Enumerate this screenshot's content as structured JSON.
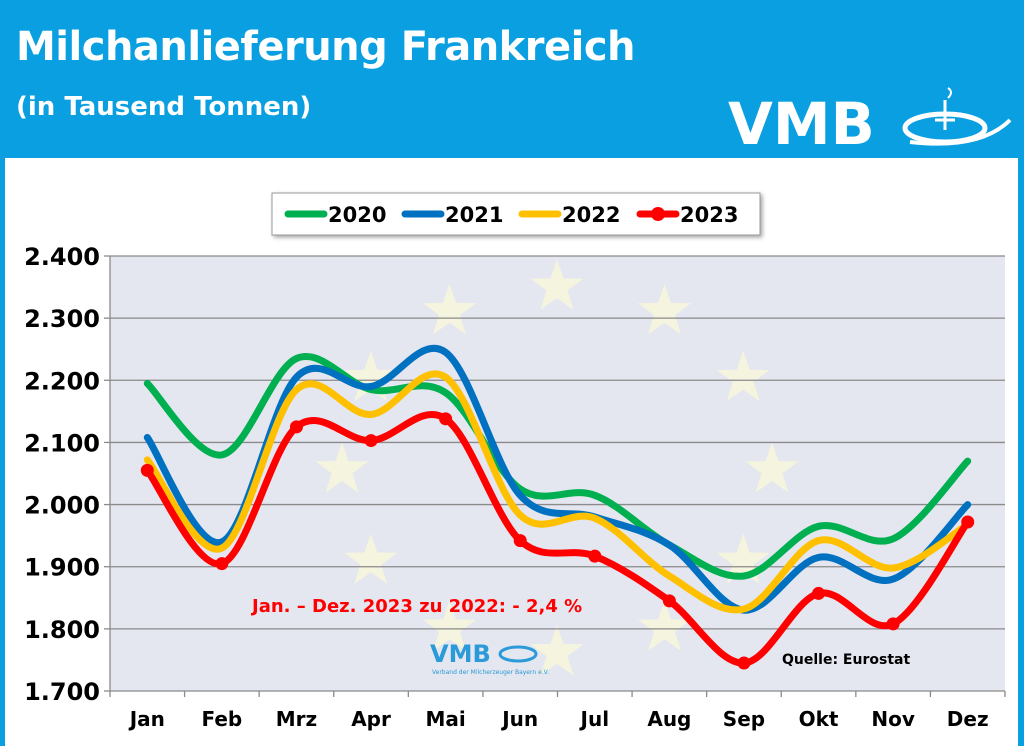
{
  "header": {
    "title": "Milchanlieferung Frankreich",
    "subtitle": "(in Tausend Tonnen)",
    "logo_text": "VMB"
  },
  "colors": {
    "header_bg": "#0a9fe0",
    "plot_bg": "#e4e6f0",
    "2020": "#00b050",
    "2021": "#0070c0",
    "2022": "#ffc000",
    "2023": "#ff0000"
  },
  "chart_data": {
    "type": "line",
    "categories": [
      "Jan",
      "Feb",
      "Mrz",
      "Apr",
      "Mai",
      "Jun",
      "Jul",
      "Aug",
      "Sep",
      "Okt",
      "Nov",
      "Dez"
    ],
    "ylim": [
      1700,
      2400
    ],
    "yticks": [
      "1.700",
      "1.800",
      "1.900",
      "2.000",
      "2.100",
      "2.200",
      "2.300",
      "2.400"
    ],
    "ytick_values": [
      1700,
      1800,
      1900,
      2000,
      2100,
      2200,
      2300,
      2400
    ],
    "grid": true,
    "legend_position": "top-center",
    "smooth": true,
    "series": [
      {
        "name": "2020",
        "color": "#00b050",
        "markers": false,
        "values": [
          2195,
          2080,
          2235,
          2185,
          2180,
          2025,
          2015,
          1935,
          1885,
          1965,
          1945,
          2070
        ]
      },
      {
        "name": "2021",
        "color": "#0070c0",
        "markers": false,
        "values": [
          2108,
          1940,
          2205,
          2190,
          2245,
          2015,
          1980,
          1935,
          1830,
          1915,
          1880,
          2000
        ]
      },
      {
        "name": "2022",
        "color": "#ffc000",
        "markers": false,
        "values": [
          2072,
          1930,
          2185,
          2145,
          2205,
          1983,
          1978,
          1885,
          1832,
          1942,
          1898,
          1968
        ]
      },
      {
        "name": "2023",
        "color": "#ff0000",
        "markers": true,
        "values": [
          2055,
          1905,
          2125,
          2103,
          2138,
          1942,
          1917,
          1845,
          1745,
          1857,
          1808,
          1972
        ]
      }
    ],
    "annotations": {
      "comparison": "Jan. – Dez. 2023 zu 2022:  - 2,4 %",
      "source": "Quelle: Eurostat"
    },
    "watermark": {
      "logo_text": "VMB",
      "logo_subtext": "Verband der Milcherzeuger Bayern e.V."
    }
  }
}
